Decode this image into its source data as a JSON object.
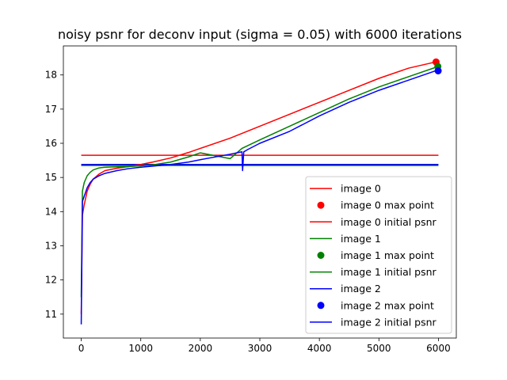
{
  "chart_data": {
    "type": "line",
    "title": "noisy psnr for deconv input (sigma = 0.05) with 6000 iterations",
    "xlabel": "",
    "ylabel": "",
    "xlim": [
      -300,
      6300
    ],
    "ylim": [
      10.3,
      18.85
    ],
    "xticks": [
      0,
      1000,
      2000,
      3000,
      4000,
      5000,
      6000
    ],
    "yticks": [
      11,
      12,
      13,
      14,
      15,
      16,
      17,
      18
    ],
    "legend_position": "lower-right",
    "colors": {
      "image0": "#ff0000",
      "image1": "#008000",
      "image2": "#0000ff"
    },
    "series": [
      {
        "name": "image 0",
        "kind": "line",
        "color": "#ff0000",
        "x": [
          0,
          20,
          50,
          100,
          150,
          200,
          300,
          400,
          600,
          800,
          1000,
          1200,
          1500,
          1800,
          2000,
          2500,
          3000,
          3500,
          4000,
          4500,
          5000,
          5500,
          6000
        ],
        "y": [
          11.0,
          13.9,
          14.2,
          14.6,
          14.8,
          14.95,
          15.1,
          15.2,
          15.27,
          15.32,
          15.38,
          15.45,
          15.57,
          15.73,
          15.85,
          16.15,
          16.5,
          16.85,
          17.2,
          17.55,
          17.9,
          18.2,
          18.4
        ]
      },
      {
        "name": "image 0 max point",
        "kind": "point",
        "color": "#ff0000",
        "x": 5960,
        "y": 18.38
      },
      {
        "name": "image 0 initial psnr",
        "kind": "hline",
        "color": "#ff0000",
        "y": 15.65,
        "x_range": [
          0,
          6000
        ]
      },
      {
        "name": "image 1",
        "kind": "line",
        "color": "#008000",
        "x": [
          0,
          20,
          50,
          100,
          150,
          200,
          300,
          400,
          600,
          800,
          1000,
          1200,
          1500,
          1800,
          2000,
          2500,
          2600,
          2700,
          3000,
          3500,
          4000,
          4500,
          5000,
          5500,
          6000
        ],
        "y": [
          11.5,
          14.6,
          14.85,
          15.05,
          15.15,
          15.22,
          15.28,
          15.3,
          15.31,
          15.32,
          15.34,
          15.37,
          15.45,
          15.6,
          15.72,
          15.55,
          15.7,
          15.85,
          16.1,
          16.5,
          16.9,
          17.3,
          17.65,
          17.95,
          18.25
        ]
      },
      {
        "name": "image 1 max point",
        "kind": "point",
        "color": "#008000",
        "x": 5990,
        "y": 18.25
      },
      {
        "name": "image 1 initial psnr",
        "kind": "hline",
        "color": "#008000",
        "y": 15.35,
        "x_range": [
          0,
          6000
        ]
      },
      {
        "name": "image 2",
        "kind": "line",
        "color": "#0000ff",
        "x": [
          0,
          20,
          50,
          100,
          150,
          200,
          300,
          400,
          600,
          800,
          1000,
          1200,
          1500,
          1800,
          2000,
          2500,
          2700,
          2710,
          2730,
          2800,
          3000,
          3500,
          4000,
          4500,
          5000,
          5500,
          6000
        ],
        "y": [
          10.7,
          14.3,
          14.45,
          14.7,
          14.85,
          14.95,
          15.05,
          15.12,
          15.2,
          15.26,
          15.3,
          15.33,
          15.38,
          15.45,
          15.52,
          15.68,
          15.75,
          15.2,
          15.75,
          15.82,
          16.0,
          16.35,
          16.8,
          17.2,
          17.55,
          17.85,
          18.15
        ]
      },
      {
        "name": "image 2 max point",
        "kind": "point",
        "color": "#0000ff",
        "x": 5995,
        "y": 18.12
      },
      {
        "name": "image 2 initial psnr",
        "kind": "hline",
        "color": "#0000ff",
        "y": 15.38,
        "x_range": [
          0,
          6000
        ]
      }
    ]
  }
}
